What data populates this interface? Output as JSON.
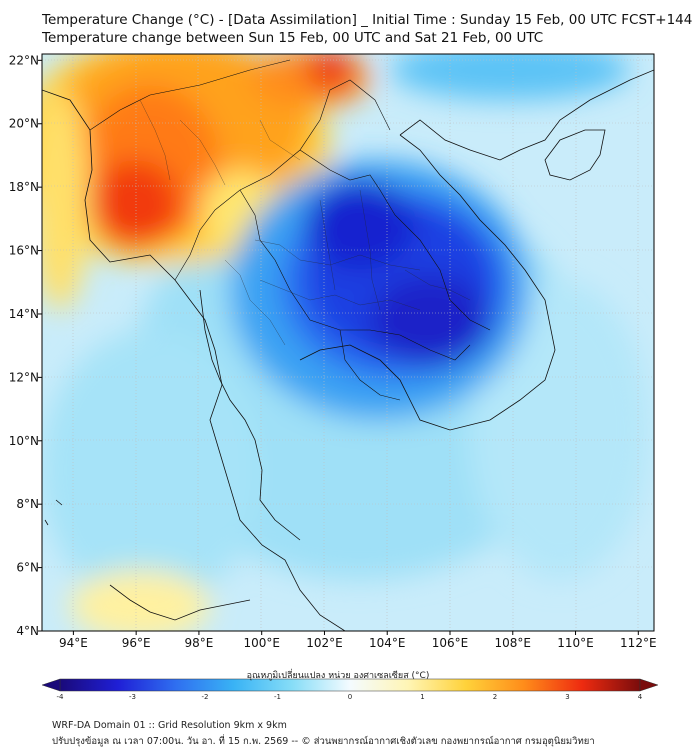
{
  "header": {
    "title_line1": "Temperature Change (°C) - [Data Assimilation] _ Initial Time : Sunday 15 Feb, 00 UTC FCST+144",
    "title_line2": "Temperature change between Sun 15 Feb, 00 UTC and Sat 21 Feb, 00 UTC"
  },
  "map": {
    "lon_ticks": [
      "94°E",
      "96°E",
      "98°E",
      "100°E",
      "102°E",
      "104°E",
      "106°E",
      "108°E",
      "110°E",
      "112°E"
    ],
    "lat_ticks": [
      "22°N",
      "20°N",
      "18°N",
      "16°N",
      "14°N",
      "12°N",
      "10°N",
      "8°N",
      "6°N",
      "4°N"
    ],
    "extent": {
      "lon_min": 93.0,
      "lon_max": 112.5,
      "lat_min": 4.0,
      "lat_max": 22.2
    }
  },
  "colorbar": {
    "label": "อุณหภูมิเปลี่ยนแปลง หน่วย องศาเซลเซียส (°C)",
    "ticks": [
      "-4",
      "-3",
      "-2",
      "-1",
      "0",
      "1",
      "2",
      "3",
      "4"
    ],
    "min": -4,
    "max": 4,
    "colors": [
      "#1a0a7a",
      "#1f1fd6",
      "#2f6ff0",
      "#39b3f5",
      "#86ddf7",
      "#f4fbff",
      "#fff5b5",
      "#ffd23a",
      "#ff8c1a",
      "#ee2b10",
      "#7a0c0c"
    ]
  },
  "footer": {
    "line1": "WRF-DA Domain 01 :: Grid Resolution 9km x 9km",
    "line2": "ปรับปรุงข้อมูล ณ เวลา 07:00น. วัน อา. ที่ 15 ก.พ. 2569 -- © ส่วนพยากรณ์อากาศเชิงตัวเลข กองพยากรณ์อากาศ กรมอุตุนิยมวิทยา"
  }
}
